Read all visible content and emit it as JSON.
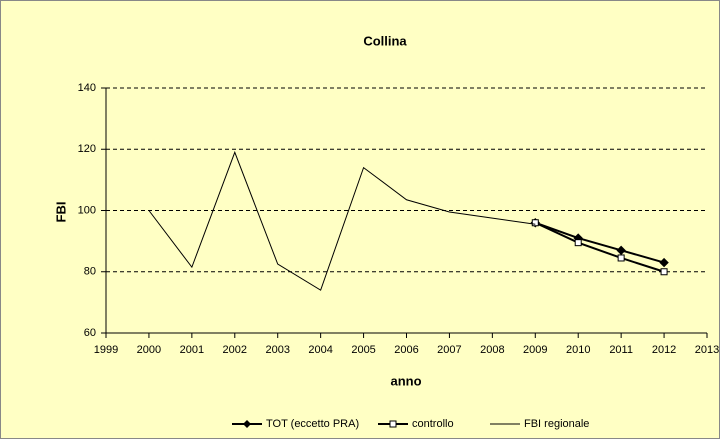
{
  "chart_data": {
    "type": "line",
    "title": "Collina",
    "ylabel": "FBI",
    "xlabel": "anno",
    "xlim": [
      1999,
      2013
    ],
    "xticks": [
      1999,
      2000,
      2001,
      2002,
      2003,
      2004,
      2005,
      2006,
      2007,
      2008,
      2009,
      2010,
      2011,
      2012,
      2013
    ],
    "ylim": [
      60,
      140
    ],
    "yticks": [
      60,
      80,
      100,
      120,
      140
    ],
    "grid": true,
    "legend": "bottom",
    "series": [
      {
        "name": "TOT (eccetto PRA)",
        "color": "#000000",
        "marker": "diamond",
        "x": [
          2009,
          2010,
          2011,
          2012
        ],
        "values": [
          96,
          91,
          87,
          83
        ]
      },
      {
        "name": "controllo",
        "color": "#000000",
        "marker": "square",
        "x": [
          2009,
          2010,
          2011,
          2012
        ],
        "values": [
          96,
          89.5,
          84.5,
          80
        ]
      },
      {
        "name": "FBI regionale",
        "color": "#000000",
        "marker": "none",
        "x": [
          2000,
          2001,
          2002,
          2003,
          2004,
          2005,
          2006,
          2007,
          2008,
          2009
        ],
        "values": [
          100,
          81.5,
          119,
          82.5,
          74,
          114,
          103.5,
          99.5,
          97.5,
          95.5
        ]
      }
    ]
  }
}
